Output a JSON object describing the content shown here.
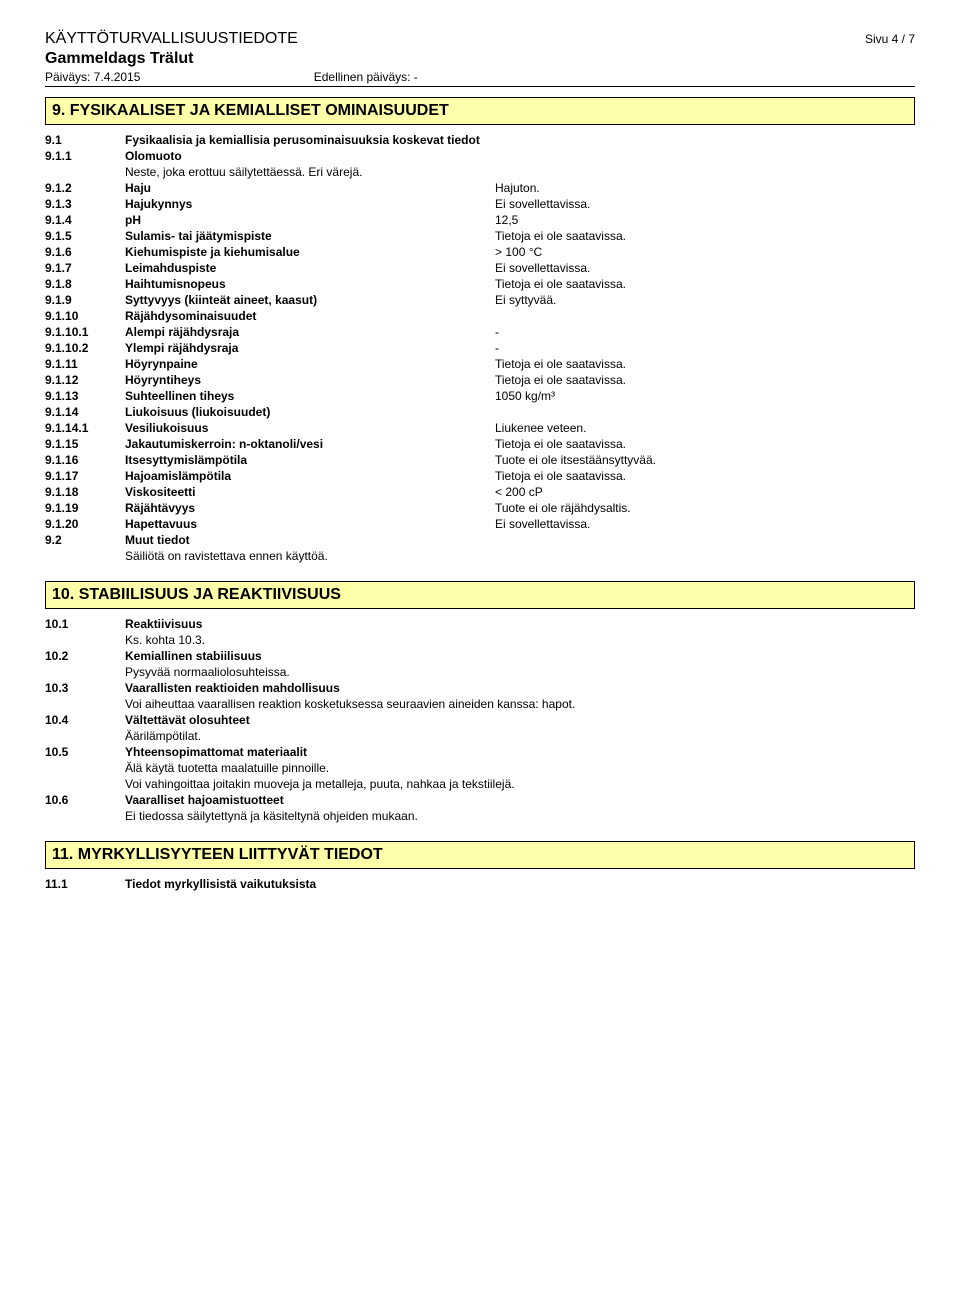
{
  "header": {
    "doc_title": "KÄYTTÖTURVALLISUUSTIEDOTE",
    "page_label": "Sivu 4 / 7",
    "product": "Gammeldags Trälut",
    "date_label": "Päiväys: 7.4.2015",
    "prev_date_label": "Edellinen päiväys: -"
  },
  "sections": {
    "s9": {
      "title": "9. FYSIKAALISET JA KEMIALLISET OMINAISUUDET",
      "r9_1": {
        "num": "9.1",
        "label": "Fysikaalisia ja kemiallisia perusominaisuuksia koskevat tiedot"
      },
      "r9_1_1": {
        "num": "9.1.1",
        "label": "Olomuoto",
        "note": "Neste, joka erottuu säilytettäessä. Eri värejä."
      },
      "r9_1_2": {
        "num": "9.1.2",
        "label": "Haju",
        "val": "Hajuton."
      },
      "r9_1_3": {
        "num": "9.1.3",
        "label": "Hajukynnys",
        "val": "Ei sovellettavissa."
      },
      "r9_1_4": {
        "num": "9.1.4",
        "label": "pH",
        "val": "12,5"
      },
      "r9_1_5": {
        "num": "9.1.5",
        "label": "Sulamis- tai jäätymispiste",
        "val": "Tietoja ei ole saatavissa."
      },
      "r9_1_6": {
        "num": "9.1.6",
        "label": "Kiehumispiste ja kiehumisalue",
        "val": "> 100 °C"
      },
      "r9_1_7": {
        "num": "9.1.7",
        "label": "Leimahduspiste",
        "val": "Ei sovellettavissa."
      },
      "r9_1_8": {
        "num": "9.1.8",
        "label": "Haihtumisnopeus",
        "val": "Tietoja ei ole saatavissa."
      },
      "r9_1_9": {
        "num": "9.1.9",
        "label": "Syttyvyys (kiinteät aineet, kaasut)",
        "val": "Ei syttyvää."
      },
      "r9_1_10": {
        "num": "9.1.10",
        "label": "Räjähdysominaisuudet"
      },
      "r9_1_10_1": {
        "num": "9.1.10.1",
        "label": "Alempi räjähdysraja",
        "val": "-"
      },
      "r9_1_10_2": {
        "num": "9.1.10.2",
        "label": "Ylempi räjähdysraja",
        "val": "-"
      },
      "r9_1_11": {
        "num": "9.1.11",
        "label": "Höyrynpaine",
        "val": "Tietoja ei ole saatavissa."
      },
      "r9_1_12": {
        "num": "9.1.12",
        "label": "Höyryntiheys",
        "val": "Tietoja ei ole saatavissa."
      },
      "r9_1_13": {
        "num": "9.1.13",
        "label": "Suhteellinen tiheys",
        "val": "1050 kg/m³"
      },
      "r9_1_14": {
        "num": "9.1.14",
        "label": "Liukoisuus (liukoisuudet)"
      },
      "r9_1_14_1": {
        "num": "9.1.14.1",
        "label": "Vesiliukoisuus",
        "val": "Liukenee veteen."
      },
      "r9_1_15": {
        "num": "9.1.15",
        "label": "Jakautumiskerroin: n-oktanoli/vesi",
        "val": "Tietoja ei ole saatavissa."
      },
      "r9_1_16": {
        "num": "9.1.16",
        "label": "Itsesyttymislämpötila",
        "val": "Tuote ei ole itsestäänsyttyvää."
      },
      "r9_1_17": {
        "num": "9.1.17",
        "label": "Hajoamislämpötila",
        "val": "Tietoja ei ole saatavissa."
      },
      "r9_1_18": {
        "num": "9.1.18",
        "label": "Viskositeetti",
        "val": "< 200 cP"
      },
      "r9_1_19": {
        "num": "9.1.19",
        "label": "Räjähtävyys",
        "val": "Tuote ei ole räjähdysaltis."
      },
      "r9_1_20": {
        "num": "9.1.20",
        "label": "Hapettavuus",
        "val": "Ei sovellettavissa."
      },
      "r9_2": {
        "num": "9.2",
        "label": "Muut tiedot",
        "note": "Säiliötä on ravistettava ennen käyttöä."
      }
    },
    "s10": {
      "title": "10. STABIILISUUS JA REAKTIIVISUUS",
      "r10_1": {
        "num": "10.1",
        "label": "Reaktiivisuus",
        "note": "Ks. kohta 10.3."
      },
      "r10_2": {
        "num": "10.2",
        "label": "Kemiallinen stabiilisuus",
        "note": "Pysyvää normaaliolosuhteissa."
      },
      "r10_3": {
        "num": "10.3",
        "label": "Vaarallisten reaktioiden mahdollisuus",
        "note": "Voi aiheuttaa vaarallisen reaktion kosketuksessa seuraavien aineiden kanssa: hapot."
      },
      "r10_4": {
        "num": "10.4",
        "label": "Vältettävät olosuhteet",
        "note": "Äärilämpötilat."
      },
      "r10_5": {
        "num": "10.5",
        "label": "Yhteensopimattomat materiaalit",
        "note1": "Älä käytä tuotetta maalatuille pinnoille.",
        "note2": "Voi vahingoittaa joitakin muoveja ja metalleja, puuta, nahkaa ja tekstiilejä."
      },
      "r10_6": {
        "num": "10.6",
        "label": "Vaaralliset hajoamistuotteet",
        "note": "Ei tiedossa säilytettynä ja käsiteltynä ohjeiden mukaan."
      }
    },
    "s11": {
      "title": "11. MYRKYLLISYYTEEN LIITTYVÄT TIEDOT",
      "r11_1": {
        "num": "11.1",
        "label": "Tiedot myrkyllisistä vaikutuksista"
      }
    }
  }
}
